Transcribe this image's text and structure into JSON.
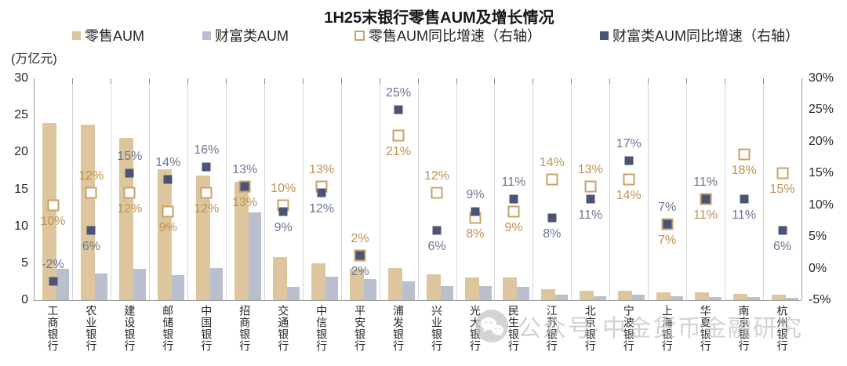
{
  "title": "1H25末银行零售AUM及增长情况",
  "unit_label": "(万亿元)",
  "legend": [
    {
      "label": "零售AUM",
      "swatch": "filled",
      "color": "#ddc69e"
    },
    {
      "label": "财富类AUM",
      "swatch": "filled",
      "color": "#b9bfce"
    },
    {
      "label": "零售AUM同比增速（右轴）",
      "swatch": "hollow",
      "color": "#c8a269"
    },
    {
      "label": "财富类AUM同比增速（右轴）",
      "swatch": "filled",
      "color": "#4b5377"
    }
  ],
  "watermark": "公众号·中金货币金融研究",
  "colors": {
    "retail_bar": "#ddc69e",
    "wealth_bar": "#b9bfce",
    "retail_marker_border": "#c8a269",
    "wealth_marker_fill": "#4b5377",
    "retail_label": "#bf9251",
    "wealth_label": "#6d7596"
  },
  "chart_data": {
    "type": "bar",
    "title": "1H25末银行零售AUM及增长情况",
    "ylabel_left": "万亿元",
    "ylabel_right": "%",
    "grid": "vertical-only",
    "legend_position": "top",
    "left_axis": {
      "min": 0,
      "max": 30,
      "ticks": [
        30,
        25,
        20,
        15,
        10,
        5,
        0
      ]
    },
    "right_axis": {
      "min": -5,
      "max": 30,
      "tick_labels": [
        "30%",
        "25%",
        "20%",
        "15%",
        "10%",
        "5%",
        "0%",
        "-5%"
      ],
      "tick_values": [
        30,
        25,
        20,
        15,
        10,
        5,
        0,
        -5
      ]
    },
    "categories": [
      "工商银行",
      "农业银行",
      "建设银行",
      "邮储银行",
      "中国银行",
      "招商银行",
      "交通银行",
      "中信银行",
      "平安银行",
      "浦发银行",
      "兴业银行",
      "光大银行",
      "民生银行",
      "江苏银行",
      "北京银行",
      "宁波银行",
      "上海银行",
      "华夏银行",
      "南京银行",
      "杭州银行"
    ],
    "series": [
      {
        "name": "零售AUM",
        "kind": "bar",
        "axis": "left",
        "unit": "万亿元",
        "values": [
          24.0,
          23.7,
          22.0,
          17.7,
          16.9,
          16.0,
          5.8,
          5.0,
          4.2,
          4.3,
          3.5,
          3.1,
          3.1,
          1.5,
          1.3,
          1.3,
          1.1,
          1.1,
          0.9,
          0.7
        ]
      },
      {
        "name": "财富类AUM",
        "kind": "bar",
        "axis": "left",
        "unit": "万亿元",
        "values": [
          4.2,
          3.6,
          4.2,
          3.4,
          4.3,
          11.9,
          1.8,
          3.2,
          2.9,
          2.5,
          1.9,
          1.9,
          1.8,
          0.7,
          0.5,
          0.8,
          0.5,
          0.4,
          0.4,
          0.3
        ]
      },
      {
        "name": "零售AUM同比增速（右轴）",
        "kind": "scatter-square-hollow",
        "axis": "right",
        "unit": "%",
        "values": [
          10,
          12,
          12,
          9,
          12,
          13,
          10,
          13,
          2,
          21,
          12,
          8,
          9,
          14,
          13,
          14,
          7,
          11,
          18,
          15
        ],
        "label_side": [
          "below",
          "above",
          "below",
          "below",
          "below",
          "below",
          "above",
          "above",
          "above",
          "below",
          "above",
          "below",
          "below",
          "above",
          "above",
          "below",
          "below",
          "below",
          "below",
          "below"
        ]
      },
      {
        "name": "财富类AUM同比增速（右轴）",
        "kind": "scatter-square-filled",
        "axis": "right",
        "unit": "%",
        "values": [
          -2,
          6,
          15,
          14,
          16,
          13,
          9,
          12,
          2,
          25,
          6,
          9,
          11,
          8,
          11,
          17,
          7,
          11,
          11,
          6
        ],
        "label_side": [
          "above",
          "below",
          "above",
          "above",
          "above",
          "above",
          "below",
          "below",
          "below",
          "above",
          "below",
          "above",
          "above",
          "below",
          "below",
          "above",
          "above",
          "above",
          "below",
          "below"
        ]
      }
    ]
  }
}
